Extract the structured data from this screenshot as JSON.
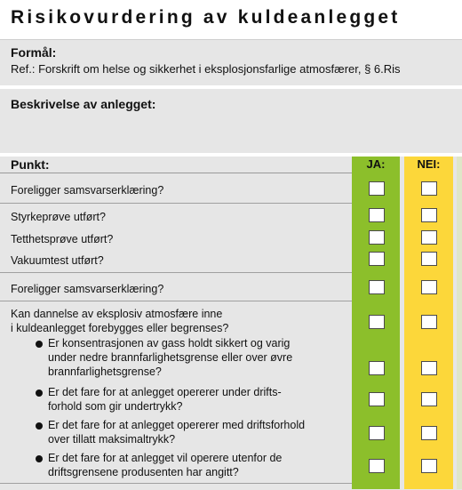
{
  "document": {
    "title": "Risikovurdering av kuldeanlegget"
  },
  "formal": {
    "heading": "Formål:",
    "reference": "Ref.: Forskrift om helse og sikkerhet i eksplosjonsfarlige atmosfærer, § 6.Ris"
  },
  "description": {
    "heading": "Beskrivelse av anlegget:"
  },
  "table": {
    "point_header": "Punkt:",
    "yes_header": "JA:",
    "no_header": "NEI:",
    "rows": [
      {
        "text": "Foreligger samsvarserklæring?"
      },
      {
        "text": "Styrkeprøve utført?"
      },
      {
        "text": "Tetthetsprøve utført?"
      },
      {
        "text": "Vakuumtest utført?"
      },
      {
        "text": "Foreligger samsvarserklæring?"
      },
      {
        "lines": [
          "Kan dannelse av eksplosiv atmosfære inne",
          "i kuldeanlegget forebygges eller begrenses?"
        ]
      },
      {
        "lines": [
          "Er konsentrasjonen av gass holdt sikkert og varig",
          "under nedre brannfarlighetsgrense eller over øvre",
          "brannfarlighetsgrense?"
        ]
      },
      {
        "lines": [
          "Er det fare for at anlegget opererer under drifts-",
          "forhold som gir undertrykk?"
        ]
      },
      {
        "lines": [
          "Er det fare for at anlegget opererer med driftsforhold",
          "over tillatt maksimaltrykk?"
        ]
      },
      {
        "lines": [
          "Er det fare for at anlegget vil operere utenfor de",
          "driftsgrensene produsenten har angitt?"
        ]
      }
    ]
  },
  "colors": {
    "yes_column": "#8cbf2b",
    "no_column": "#fcd73a",
    "background": "#e6e6e6"
  }
}
